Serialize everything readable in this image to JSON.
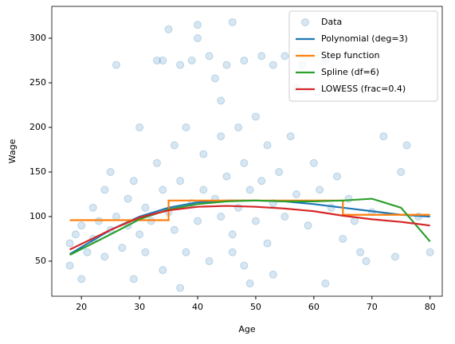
{
  "chart_data": {
    "type": "scatter",
    "xlabel": "Age",
    "ylabel": "Wage",
    "xlim": [
      14.9,
      82.1
    ],
    "ylim": [
      10.7,
      335.7
    ],
    "xticks": [
      20,
      30,
      40,
      50,
      60,
      70,
      80
    ],
    "yticks": [
      50,
      100,
      150,
      200,
      250,
      300
    ],
    "legend": "upper right",
    "series": [
      {
        "name": "Data",
        "type": "scatter",
        "color": "#1f77b4",
        "x": [
          18,
          18,
          19,
          20,
          20,
          21,
          22,
          22,
          23,
          24,
          24,
          25,
          25,
          26,
          26,
          27,
          28,
          28,
          29,
          30,
          30,
          31,
          31,
          32,
          33,
          33,
          34,
          34,
          35,
          35,
          36,
          36,
          37,
          37,
          38,
          38,
          39,
          39,
          40,
          40,
          41,
          41,
          42,
          42,
          43,
          43,
          44,
          44,
          45,
          45,
          46,
          46,
          47,
          47,
          48,
          48,
          49,
          49,
          50,
          50,
          51,
          51,
          52,
          52,
          53,
          53,
          54,
          55,
          55,
          56,
          57,
          58,
          59,
          60,
          61,
          62,
          63,
          64,
          65,
          66,
          67,
          68,
          70,
          72,
          74,
          76,
          78,
          80,
          34,
          37,
          40,
          44,
          48,
          57,
          62,
          69,
          75,
          29,
          53,
          46
        ],
        "values": [
          70,
          45,
          80,
          30,
          90,
          60,
          110,
          75,
          95,
          130,
          55,
          85,
          150,
          270,
          100,
          65,
          120,
          90,
          140,
          80,
          200,
          110,
          60,
          95,
          275,
          160,
          130,
          40,
          310,
          105,
          180,
          85,
          270,
          140,
          200,
          60,
          115,
          275,
          300,
          95,
          170,
          130,
          280,
          50,
          255,
          120,
          190,
          100,
          270,
          145,
          318,
          80,
          200,
          110,
          275,
          160,
          130,
          25,
          212,
          95,
          280,
          140,
          180,
          70,
          270,
          115,
          150,
          280,
          100,
          190,
          125,
          270,
          90,
          160,
          130,
          275,
          110,
          145,
          75,
          120,
          95,
          60,
          105,
          190,
          55,
          180,
          100,
          60,
          275,
          20,
          315,
          230,
          45,
          245,
          25,
          50,
          150,
          30,
          35,
          60
        ]
      },
      {
        "name": "Polynomial (deg=3)",
        "type": "line",
        "color": "#1f77b4",
        "x": [
          18,
          25,
          30,
          35,
          40,
          45,
          50,
          55,
          60,
          65,
          70,
          75,
          80
        ],
        "values": [
          58,
          85,
          100,
          110,
          116,
          118,
          118,
          117,
          114,
          110,
          106,
          102,
          100
        ]
      },
      {
        "name": "Step function",
        "type": "line",
        "color": "#ff7f0e",
        "x": [
          18,
          35,
          35,
          65,
          65,
          80
        ],
        "values": [
          96,
          96,
          118,
          118,
          102,
          102
        ]
      },
      {
        "name": "Spline (df=6)",
        "type": "line",
        "color": "#2ca02c",
        "x": [
          18,
          25,
          30,
          35,
          40,
          45,
          50,
          55,
          60,
          65,
          70,
          75,
          80
        ],
        "values": [
          57,
          80,
          97,
          108,
          114,
          117,
          118,
          117,
          117,
          118,
          120,
          110,
          72
        ]
      },
      {
        "name": "LOWESS (frac=0.4)",
        "type": "line",
        "color": "#d62728",
        "x": [
          18,
          25,
          30,
          35,
          40,
          45,
          50,
          55,
          60,
          65,
          70,
          75,
          80
        ],
        "values": [
          63,
          85,
          99,
          107,
          111,
          112,
          111,
          109,
          106,
          101,
          97,
          94,
          90
        ]
      }
    ]
  }
}
